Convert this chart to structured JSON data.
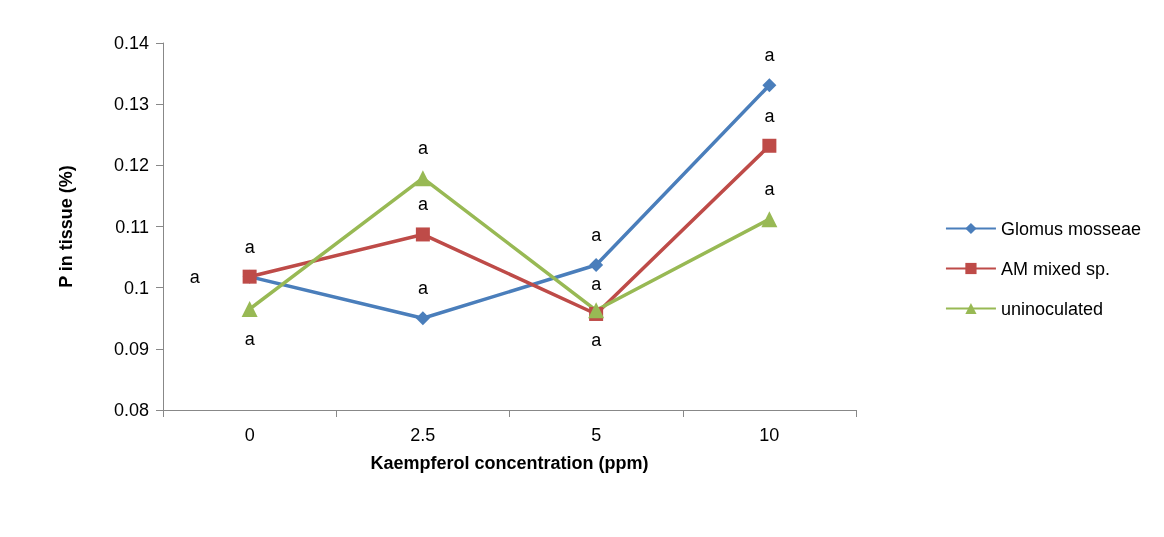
{
  "chart_data": {
    "type": "line",
    "xlabel": "Kaempferol concentration (ppm)",
    "ylabel": "P in tissue (%)",
    "categories": [
      "0",
      "2.5",
      "5",
      "10"
    ],
    "series": [
      {
        "name": "Glomus mosseae",
        "color": "#4a7ebb",
        "marker": "diamond",
        "values": [
          0.1018,
          0.095,
          0.1037,
          0.1331
        ]
      },
      {
        "name": "AM mixed sp.",
        "color": "#be4b48",
        "marker": "square",
        "values": [
          0.1018,
          0.1087,
          0.0957,
          0.1232
        ]
      },
      {
        "name": "uninoculated",
        "color": "#98b954",
        "marker": "triangle",
        "values": [
          0.0965,
          0.1179,
          0.0963,
          0.1112
        ]
      }
    ],
    "ylim": [
      0.08,
      0.14
    ],
    "yticks": [
      0.08,
      0.09,
      0.1,
      0.11,
      0.12,
      0.13,
      0.14
    ],
    "grid": false,
    "legend": "right",
    "annotations": [
      {
        "text": "a",
        "x": "0",
        "y": 0.1018
      },
      {
        "text": "a",
        "x": "0",
        "y": 0.1018
      },
      {
        "text": "a",
        "x": "0",
        "y": 0.0965
      },
      {
        "text": "a",
        "x": "2.5",
        "y": 0.1179
      },
      {
        "text": "a",
        "x": "2.5",
        "y": 0.1087
      },
      {
        "text": "a",
        "x": "2.5",
        "y": 0.095
      },
      {
        "text": "a",
        "x": "5",
        "y": 0.1037
      },
      {
        "text": "a",
        "x": "5",
        "y": 0.0957
      },
      {
        "text": "a",
        "x": "5",
        "y": 0.0963
      },
      {
        "text": "a",
        "x": "10",
        "y": 0.1331
      },
      {
        "text": "a",
        "x": "10",
        "y": 0.1232
      },
      {
        "text": "a",
        "x": "10",
        "y": 0.1112
      }
    ]
  }
}
